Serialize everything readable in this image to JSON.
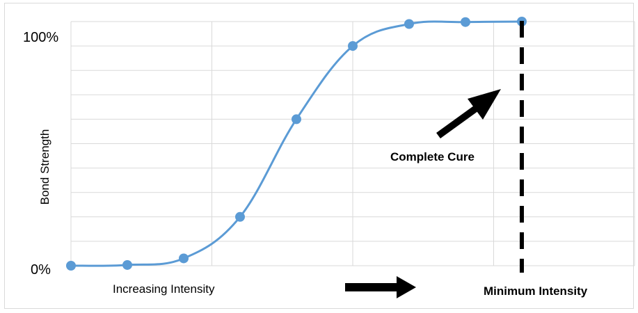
{
  "chart_data": {
    "type": "line",
    "x": [
      0,
      1,
      2,
      3,
      4,
      5,
      6,
      7,
      8
    ],
    "series": [
      {
        "values": [
          0,
          0.3,
          3,
          20,
          60,
          90,
          99,
          99.8,
          100
        ]
      }
    ],
    "y_tick_labels": {
      "min": "0%",
      "max": "100%"
    },
    "xlabel": "Increasing Intensity",
    "ylabel": "Bond Strength",
    "ylim": [
      0,
      100
    ],
    "xlim": [
      0,
      10
    ],
    "grid": true,
    "series_color": "#5b9bd5",
    "annotations": {
      "complete_cure": "Complete Cure",
      "minimum_intensity": "Minimum Intensity"
    }
  }
}
